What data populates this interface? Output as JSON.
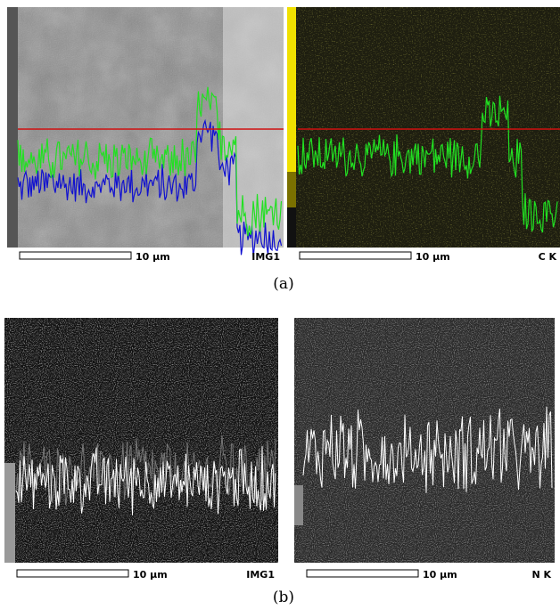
{
  "panels": [
    {
      "label": "(a)",
      "images": [
        {
          "scale_bar": "10 μm",
          "caption": "IMG1"
        },
        {
          "scale_bar": "10 μm",
          "caption": "C K"
        }
      ]
    },
    {
      "label": "(b)",
      "images": [
        {
          "scale_bar": "10 μm",
          "caption": "IMG1"
        },
        {
          "scale_bar": "10 μm",
          "caption": "N K"
        }
      ]
    }
  ]
}
